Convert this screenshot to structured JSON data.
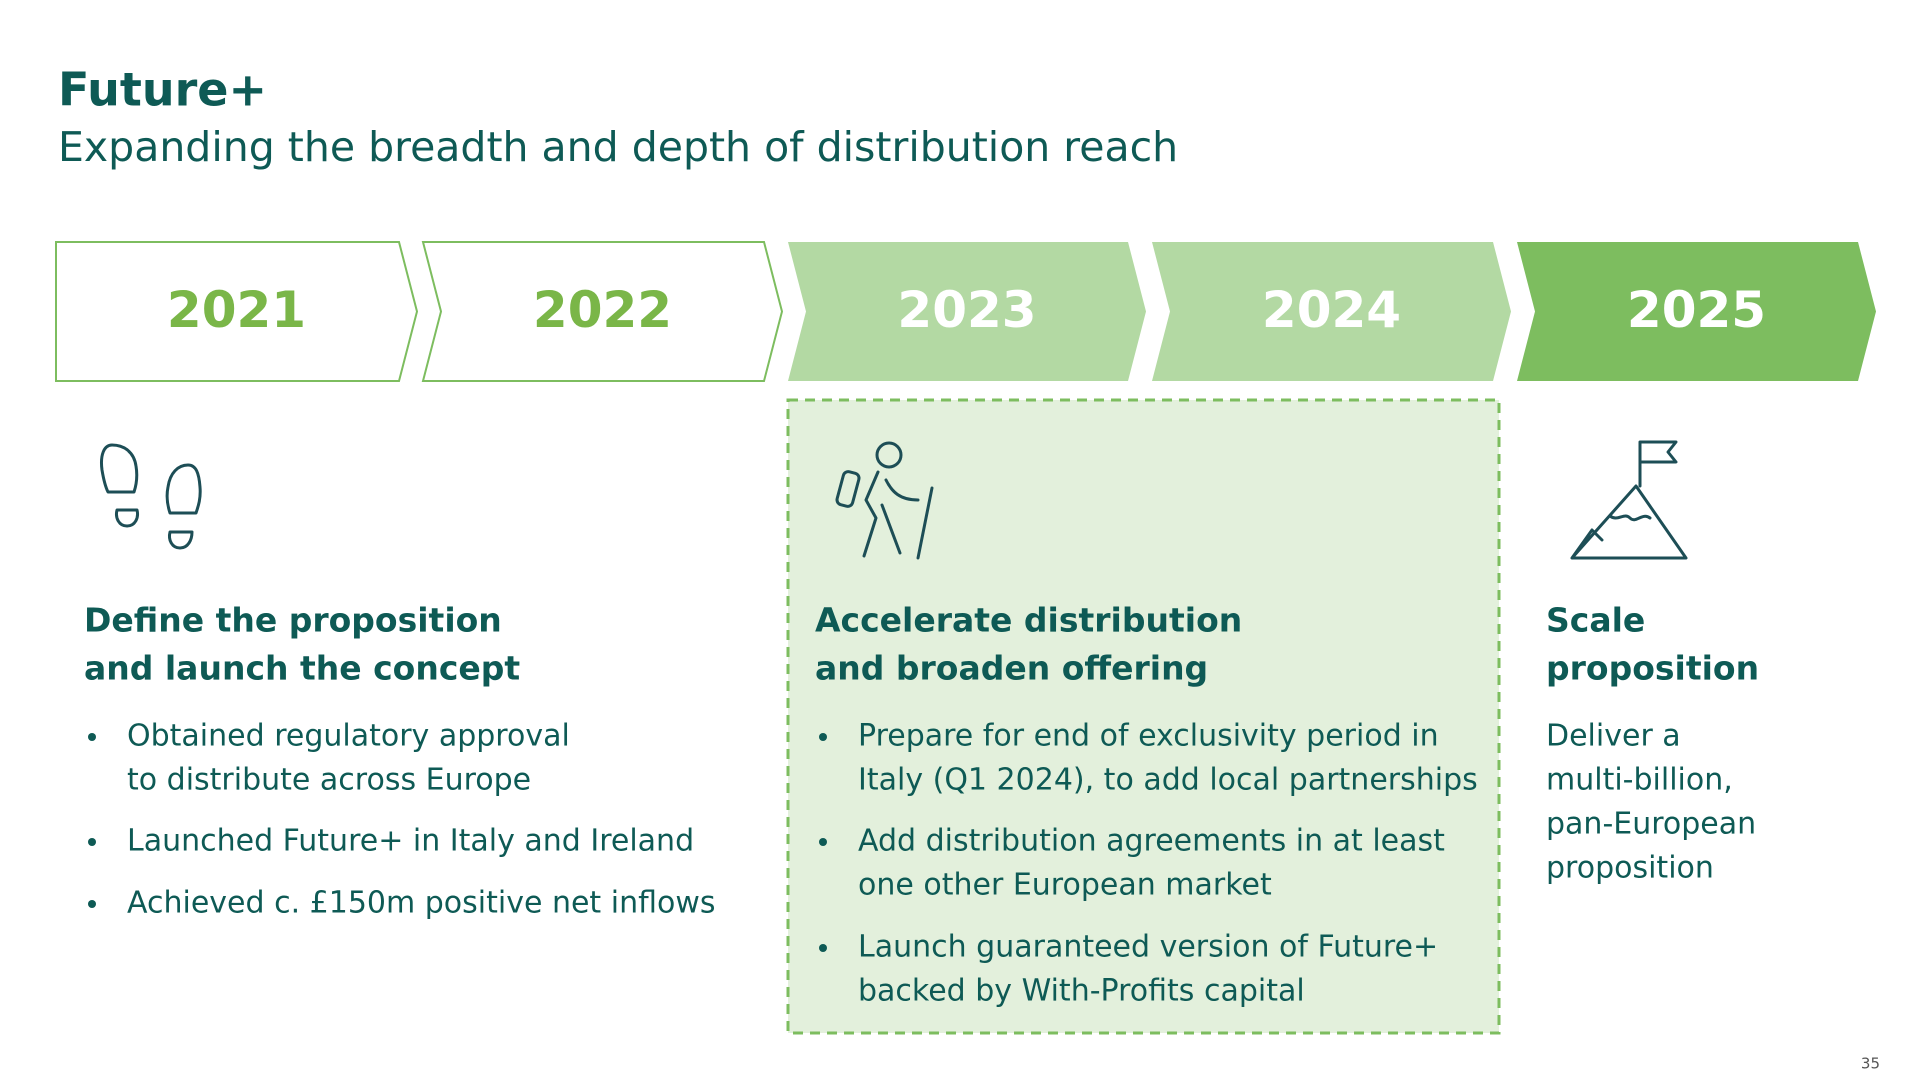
{
  "header": {
    "title": "Future+",
    "subtitle": "Expanding the breadth and depth of distribution reach"
  },
  "timeline": [
    "2021",
    "2022",
    "2023",
    "2024",
    "2025"
  ],
  "columns": [
    {
      "heading": [
        "Define the proposition",
        "and launch the concept"
      ],
      "bullets": [
        [
          "Obtained regulatory approval",
          "to distribute across Europe"
        ],
        [
          "Launched Future+ in Italy and Ireland"
        ],
        [
          "Achieved c. £150m positive net inflows"
        ]
      ]
    },
    {
      "heading": [
        "Accelerate distribution",
        "and broaden offering"
      ],
      "bullets": [
        [
          "Prepare for end of exclusivity period in",
          "Italy (Q1 2024), to add local partnerships"
        ],
        [
          "Add distribution agreements in at least",
          "one other European market"
        ],
        [
          "Launch guaranteed version of Future+",
          "backed by With-Profits capital"
        ]
      ]
    },
    {
      "heading": [
        "Scale",
        "proposition"
      ],
      "body": [
        "Deliver a",
        "multi-billion,",
        "pan-European",
        "proposition"
      ]
    }
  ],
  "page_number": "35"
}
